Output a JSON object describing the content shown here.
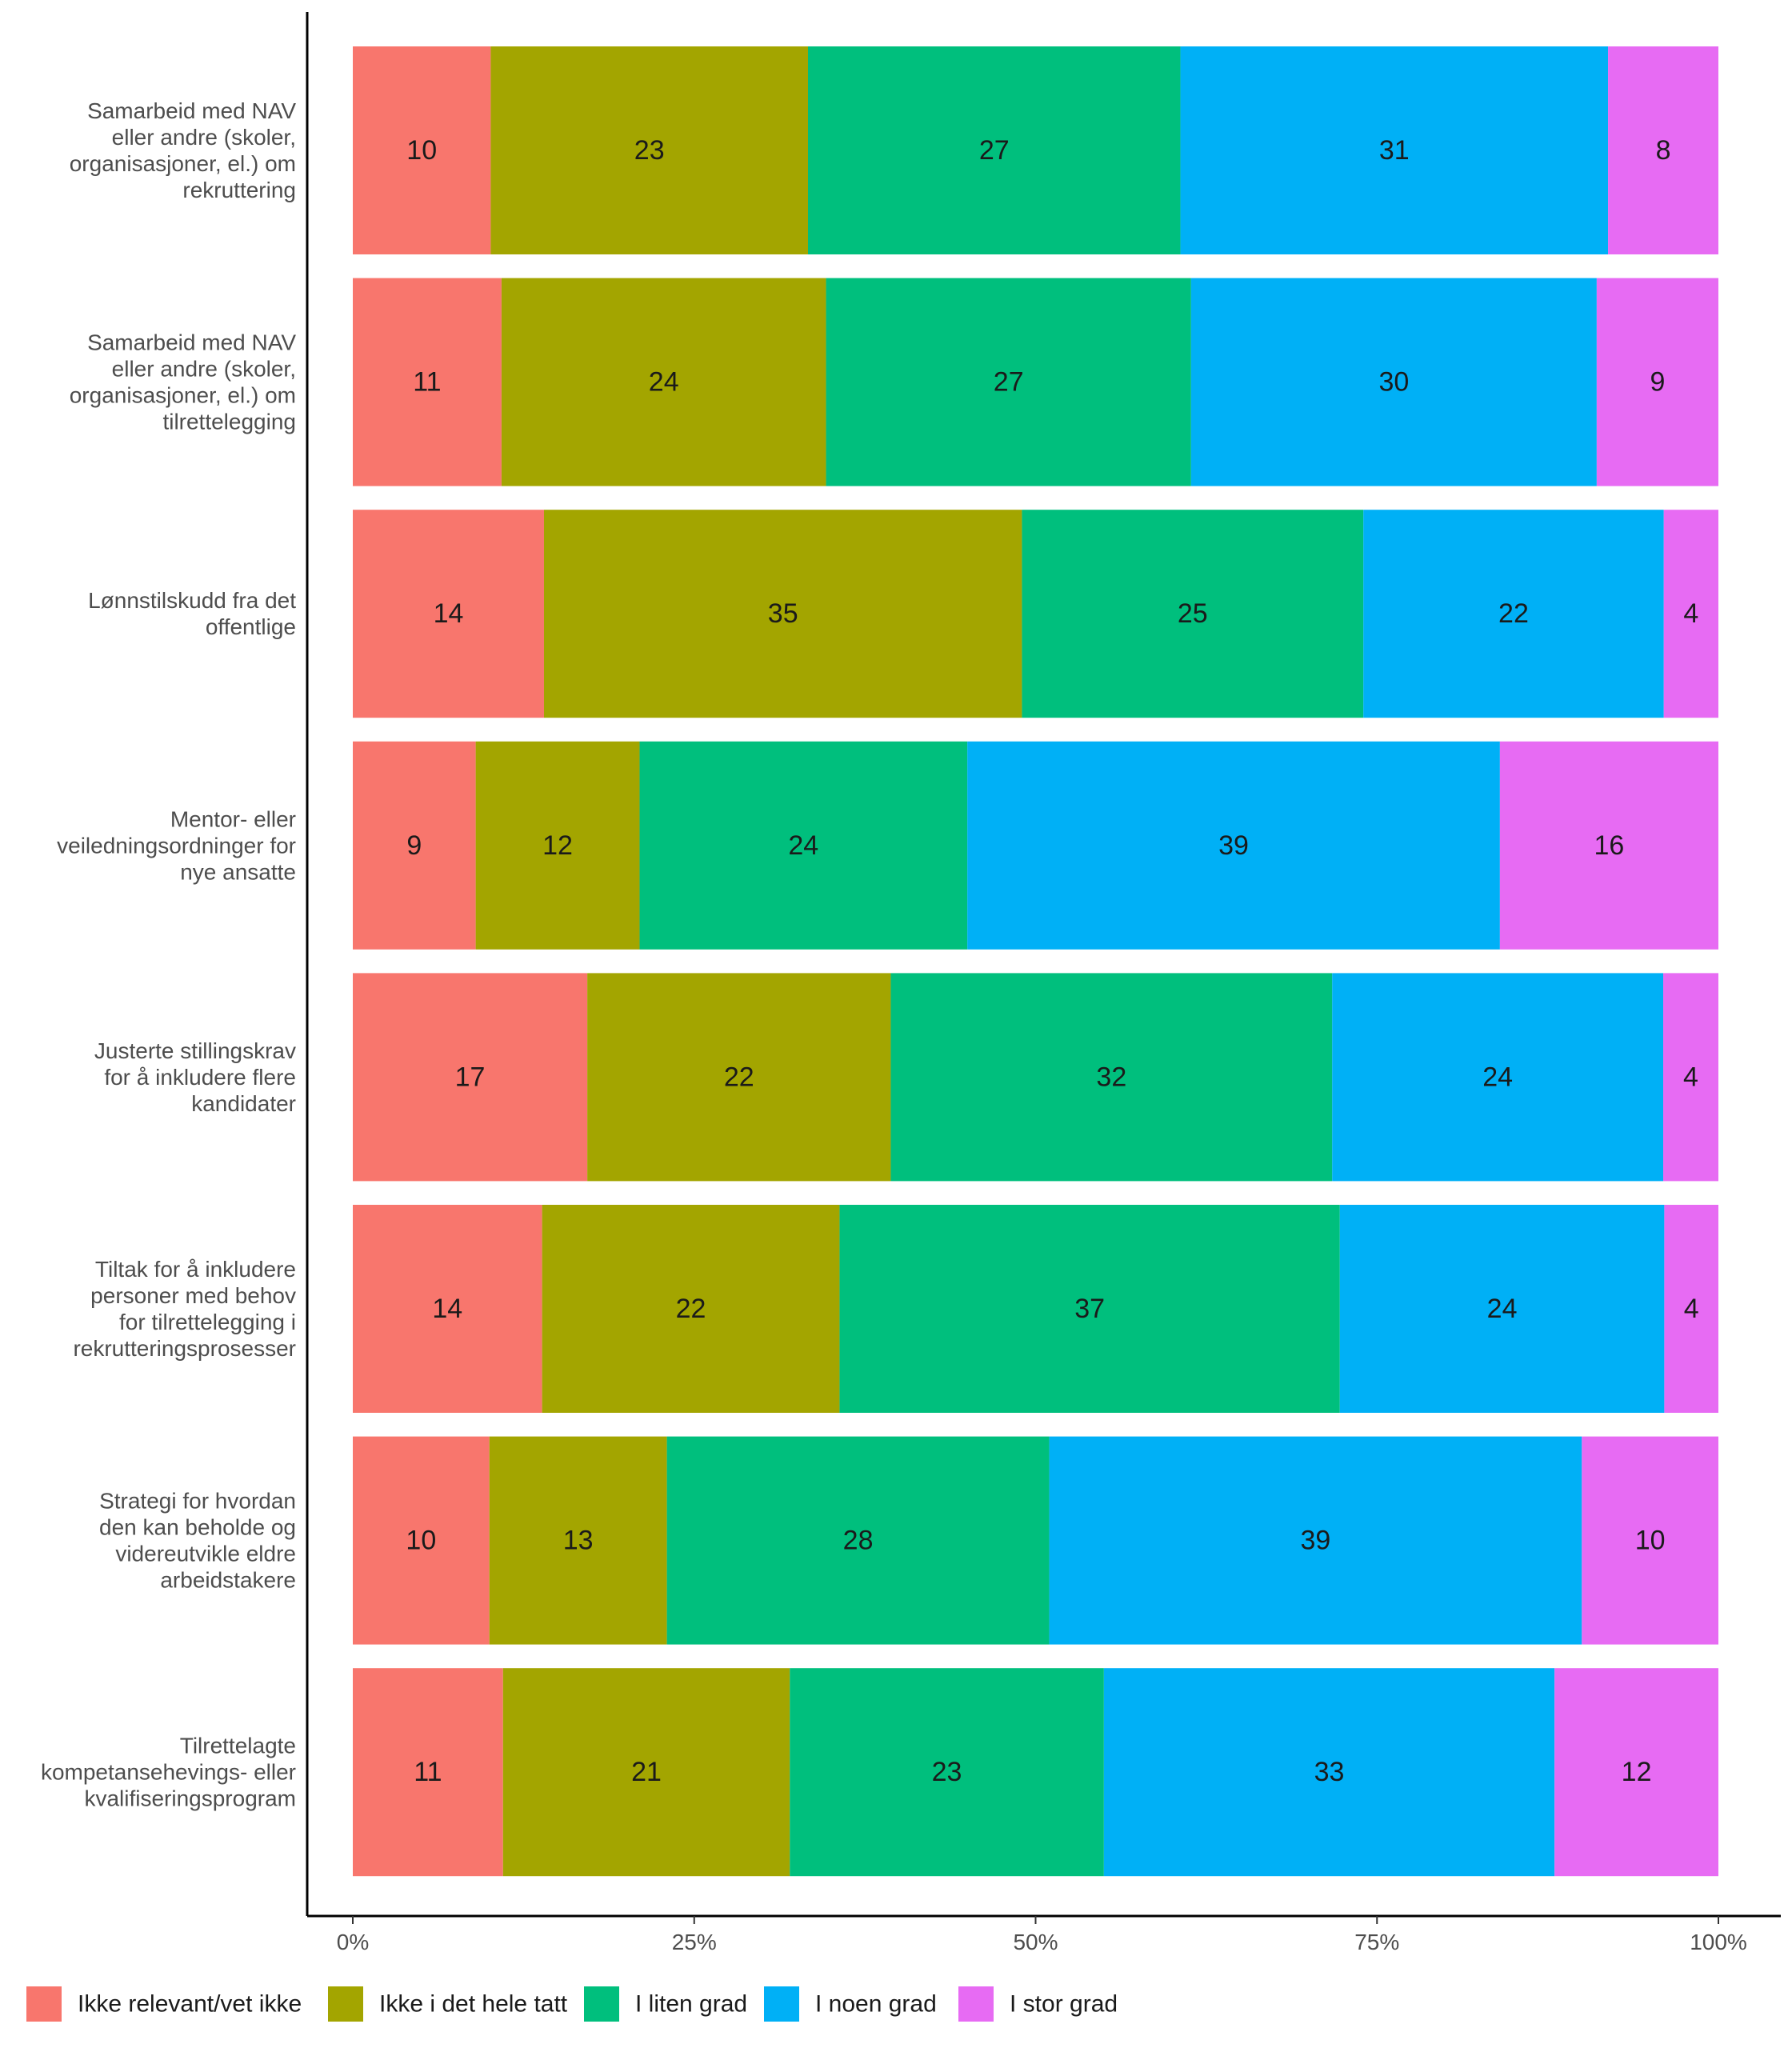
{
  "chart_data": {
    "type": "bar",
    "orientation": "horizontal",
    "stacked": true,
    "normalized": true,
    "categories": [
      "Samarbeid med NAV eller andre (skoler, organisasjoner, el.) om rekruttering",
      "Samarbeid med NAV eller andre (skoler, organisasjoner, el.) om tilrettelegging",
      "Lønnstilskudd fra det offentlige",
      "Mentor- eller veiledningsordninger for nye ansatte",
      "Justerte stillingskrav for å inkludere flere kandidater",
      "Tiltak for å inkludere personer med behov for tilrettelegging i rekrutteringsprosesser",
      "Strategi for hvordan den kan beholde og videreutvikle eldre arbeidstakere",
      "Tilrettelagte kompetansehevings- eller kvalifiseringsprogram"
    ],
    "category_label_lines": [
      [
        "Samarbeid med NAV",
        "eller andre (skoler,",
        "organisasjoner, el.) om",
        "rekruttering"
      ],
      [
        "Samarbeid med NAV",
        "eller andre (skoler,",
        "organisasjoner, el.) om",
        "tilrettelegging"
      ],
      [
        "Lønnstilskudd fra det",
        "offentlige"
      ],
      [
        "Mentor- eller",
        "veiledningsordninger for",
        "nye ansatte"
      ],
      [
        "Justerte stillingskrav",
        "for å inkludere flere",
        "kandidater"
      ],
      [
        "Tiltak for å inkludere",
        "personer med behov",
        "for tilrettelegging i",
        "rekrutteringsprosesser"
      ],
      [
        "Strategi for hvordan",
        "den kan beholde og",
        "videreutvikle eldre",
        "arbeidstakere"
      ],
      [
        "Tilrettelagte",
        "kompetansehevings- eller",
        "kvalifiseringsprogram"
      ]
    ],
    "series": [
      {
        "name": "Ikke relevant/vet ikke",
        "color": "#F8766D",
        "values": [
          10,
          11,
          14,
          9,
          17,
          14,
          10,
          11
        ]
      },
      {
        "name": "Ikke i det hele tatt",
        "color": "#A3A500",
        "values": [
          23,
          24,
          35,
          12,
          22,
          22,
          13,
          21
        ]
      },
      {
        "name": "I liten grad",
        "color": "#00BF7D",
        "values": [
          27,
          27,
          25,
          24,
          32,
          37,
          28,
          23
        ]
      },
      {
        "name": "I noen grad",
        "color": "#00B0F6",
        "values": [
          31,
          30,
          22,
          39,
          24,
          24,
          39,
          33
        ]
      },
      {
        "name": "I stor grad",
        "color": "#E76BF3",
        "values": [
          8,
          9,
          4,
          16,
          4,
          4,
          10,
          12
        ]
      }
    ],
    "xaxis": {
      "ticks": [
        0,
        25,
        50,
        75,
        100
      ],
      "tick_labels": [
        "0%",
        "25%",
        "50%",
        "75%",
        "100%"
      ],
      "range": [
        0,
        100
      ]
    },
    "xlabel": "",
    "ylabel": "",
    "title": "",
    "grid": false,
    "legend_position": "bottom"
  }
}
